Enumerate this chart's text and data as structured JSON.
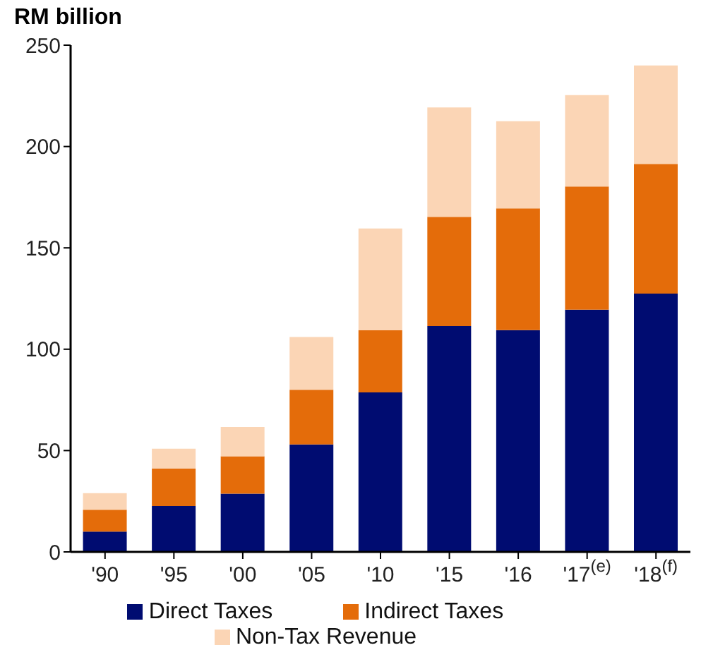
{
  "chart_data": {
    "type": "bar",
    "stacked": true,
    "ylabel": "RM billion",
    "categories": [
      "'90",
      "'95",
      "'00",
      "'05",
      "'10",
      "'15",
      "'16",
      "'17$^{(e)}$",
      "'18$^{(f)}$"
    ],
    "series": [
      {
        "name": "Direct Taxes",
        "color": "#000c71",
        "values": [
          10,
          22.6,
          28.7,
          53,
          78.7,
          111.4,
          109.4,
          119.5,
          127.4
        ]
      },
      {
        "name": "Indirect Taxes",
        "color": "#e46c0a",
        "values": [
          10.8,
          18.6,
          18.5,
          27,
          30.7,
          53.9,
          60.1,
          60.8,
          64
        ]
      },
      {
        "name": "Non-Tax Revenue",
        "color": "#fbd5b5",
        "values": [
          8.2,
          9.7,
          14.4,
          26,
          50.2,
          54,
          43,
          45.1,
          48.6
        ]
      }
    ],
    "ylim": [
      0,
      250
    ],
    "yticks": [
      0,
      50,
      100,
      150,
      200,
      250
    ],
    "grid": false,
    "legend": "bottom"
  }
}
